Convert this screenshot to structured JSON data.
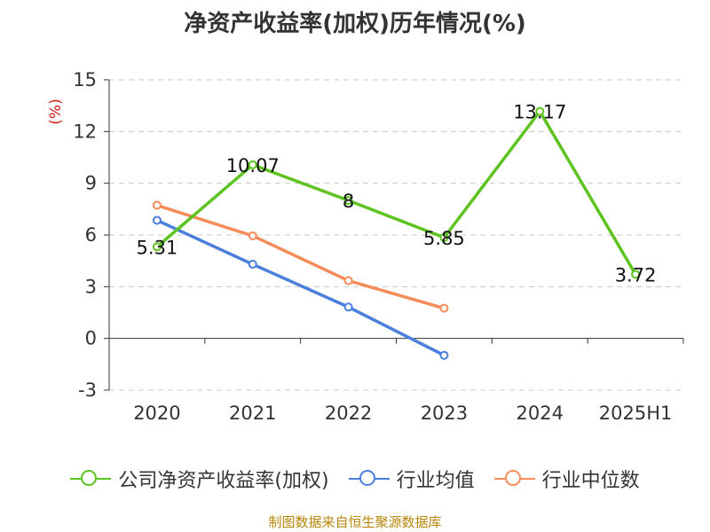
{
  "chart_data": {
    "type": "line",
    "title": "净资产收益率(加权)历年情况(%)",
    "ylabel": "(%)",
    "categories": [
      "2020",
      "2021",
      "2022",
      "2023",
      "2024",
      "2025H1"
    ],
    "yticks": [
      "15",
      "12",
      "9",
      "6",
      "3",
      "0",
      "-3"
    ],
    "ylim": [
      -3,
      15
    ],
    "grid": true,
    "legend_position": "bottom",
    "series": [
      {
        "name": "公司净资产收益率(加权)",
        "color": "#5cc320",
        "values": [
          5.31,
          10.07,
          8,
          5.85,
          13.17,
          3.72
        ],
        "labels": [
          "5.31",
          "10.07",
          "8",
          "5.85",
          "13.17",
          "3.72"
        ]
      },
      {
        "name": "行业均值",
        "color": "#4a7fdc",
        "values": [
          6.85,
          4.3,
          1.82,
          -0.98,
          null,
          null
        ]
      },
      {
        "name": "行业中位数",
        "color": "#f58c5a",
        "values": [
          7.72,
          5.95,
          3.35,
          1.75,
          null,
          null
        ]
      }
    ]
  },
  "source": "制图数据来自恒生聚源数据库"
}
